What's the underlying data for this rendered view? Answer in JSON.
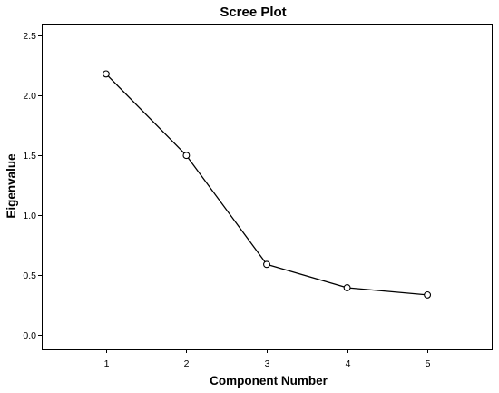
{
  "chart_data": {
    "type": "line",
    "title": "Scree Plot",
    "xlabel": "Component Number",
    "ylabel": "Eigenvalue",
    "x": [
      1,
      2,
      3,
      4,
      5
    ],
    "x_tick_labels": [
      "1",
      "2",
      "3",
      "4",
      "5"
    ],
    "xlim": [
      0.2,
      5.8
    ],
    "ylim": [
      -0.12,
      2.6
    ],
    "y_ticks": [
      0.0,
      0.5,
      1.0,
      1.5,
      2.0,
      2.5
    ],
    "y_tick_labels": [
      "0.0",
      "0.5",
      "1.0",
      "1.5",
      "2.0",
      "2.5"
    ],
    "series": [
      {
        "values": [
          2.18,
          1.5,
          0.59,
          0.395,
          0.335
        ]
      }
    ],
    "grid": false,
    "legend": "none",
    "markers": "open-circle",
    "colors": {
      "line": "#000000",
      "frame": "#000000",
      "background": "#ffffff"
    }
  }
}
